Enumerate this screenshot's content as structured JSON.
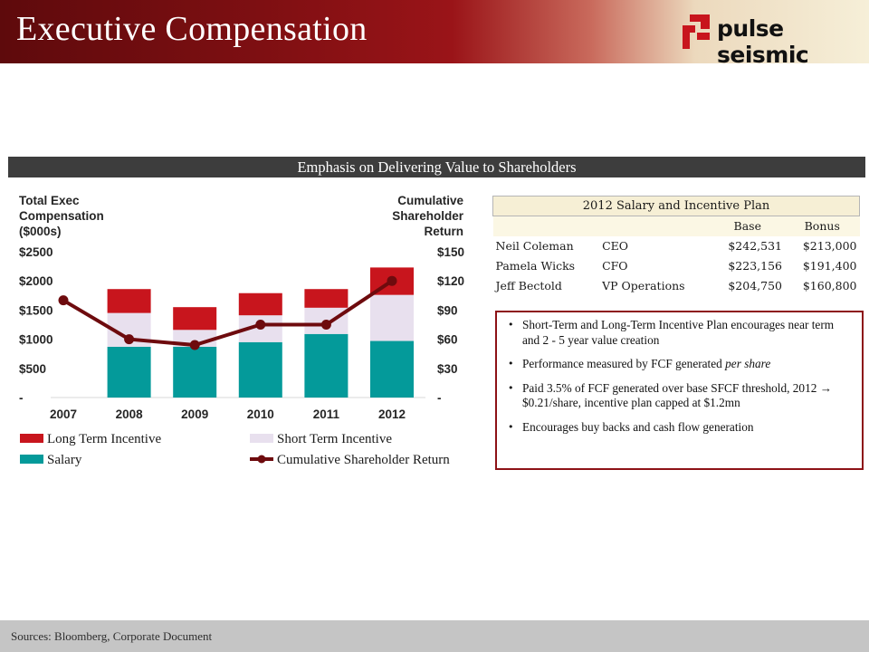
{
  "header": {
    "title": "Executive Compensation",
    "logo_text": "pulse seismic"
  },
  "section": {
    "title": "Emphasis on Delivering Value to Shareholders"
  },
  "chart_data": {
    "type": "bar",
    "stacked": true,
    "left_axis_title": [
      "Total Exec",
      "Compensation",
      "($000s)"
    ],
    "right_axis_title": [
      "Cumulative",
      "Shareholder",
      "Return"
    ],
    "categories": [
      "2007",
      "2008",
      "2009",
      "2010",
      "2011",
      "2012"
    ],
    "y_ticks": [
      "-",
      "$500",
      "$1000",
      "$1500",
      "$2000",
      "$2500"
    ],
    "y_tick_values": [
      0,
      500,
      1000,
      1500,
      2000,
      2500
    ],
    "y2_ticks": [
      "-",
      "$30",
      "$60",
      "$90",
      "$120",
      "$150"
    ],
    "y2_tick_values": [
      0,
      30,
      60,
      90,
      120,
      150
    ],
    "ylim": [
      0,
      2500
    ],
    "y2lim": [
      0,
      150
    ],
    "grid": false,
    "legend_position": "bottom",
    "series": [
      {
        "name": "Salary",
        "color": "#049a9a",
        "values": [
          0,
          870,
          870,
          950,
          1090,
          970
        ]
      },
      {
        "name": "Short Term Incentive",
        "color": "#e8e0ee",
        "values": [
          0,
          580,
          290,
          460,
          450,
          790
        ]
      },
      {
        "name": "Long Term Incentive",
        "color": "#c8151d",
        "values": [
          0,
          410,
          390,
          380,
          320,
          470
        ]
      }
    ],
    "line_series": {
      "name": "Cumulative Shareholder Return",
      "color": "#6e0b0e",
      "values": [
        100,
        60,
        54,
        75,
        75,
        120
      ]
    },
    "legend_order": [
      "Long Term Incentive",
      "Short Term Incentive",
      "Salary",
      "Cumulative Shareholder Return"
    ]
  },
  "plan_table": {
    "title": "2012 Salary and Incentive Plan",
    "headers": [
      "",
      "",
      "Base",
      "Bonus"
    ],
    "rows": [
      [
        "Neil Coleman",
        "CEO",
        "$242,531",
        "$213,000"
      ],
      [
        "Pamela Wicks",
        "CFO",
        "$223,156",
        "$191,400"
      ],
      [
        "Jeff Bectold",
        "VP Operations",
        "$204,750",
        "$160,800"
      ]
    ]
  },
  "bullets": {
    "b1": "Short-Term and Long-Term Incentive Plan encourages near term and 2 - 5 year value creation",
    "b2_main": "Performance measured by FCF generated ",
    "b2_italic": "per share",
    "b3_a": "Paid 3.5% of FCF generated over base SFCF threshold, 2012 ",
    "b3_arrow": "→",
    "b3_b": " $0.21/share, incentive plan  capped at $1.2mn",
    "b4": "Encourages buy backs and cash flow generation"
  },
  "footer": {
    "sources": "Sources: Bloomberg, Corporate Document"
  }
}
